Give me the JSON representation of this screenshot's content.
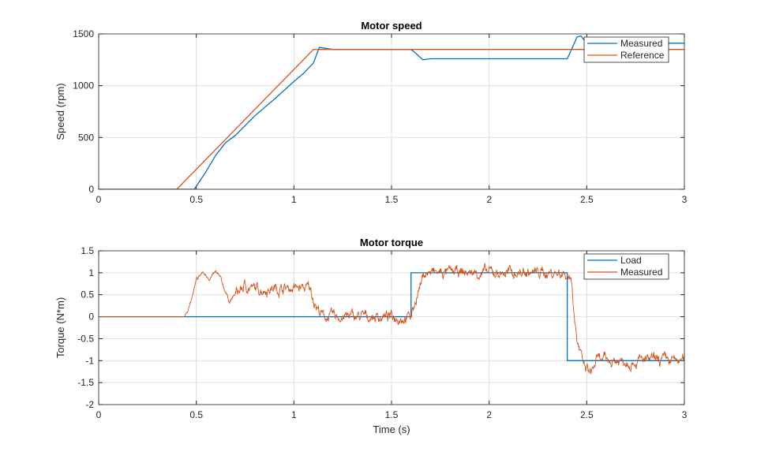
{
  "chart_data": [
    {
      "type": "line",
      "title": "Motor speed",
      "xlabel": "",
      "ylabel": "Speed (rpm)",
      "xlim": [
        0,
        3
      ],
      "ylim": [
        0,
        1500
      ],
      "xticks": [
        0,
        0.5,
        1,
        1.5,
        2,
        2.5,
        3
      ],
      "xtick_labels": [
        "0",
        "0.5",
        "1",
        "1.5",
        "2",
        "2.5",
        "3"
      ],
      "yticks": [
        0,
        500,
        1000,
        1500
      ],
      "ytick_labels": [
        "0",
        "500",
        "1000",
        "1500"
      ],
      "grid": true,
      "legend": "top-right",
      "series": [
        {
          "name": "Measured",
          "color": "#0072BD",
          "noise": 0,
          "x": [
            0,
            0.49,
            0.5,
            0.55,
            0.6,
            0.65,
            0.7,
            0.8,
            0.9,
            1.0,
            1.05,
            1.1,
            1.13,
            1.2,
            1.6,
            1.62,
            1.66,
            1.7,
            2.4,
            2.41,
            2.45,
            2.47,
            2.5,
            3.0
          ],
          "y": [
            0,
            0,
            30,
            170,
            330,
            450,
            520,
            710,
            870,
            1040,
            1120,
            1220,
            1370,
            1350,
            1350,
            1320,
            1250,
            1260,
            1260,
            1300,
            1470,
            1480,
            1410,
            1410
          ]
        },
        {
          "name": "Reference",
          "color": "#D95319",
          "noise": 0,
          "x": [
            0,
            0.4,
            1.1,
            3.0
          ],
          "y": [
            0,
            0,
            1350,
            1350
          ]
        }
      ]
    },
    {
      "type": "line",
      "title": "Motor torque",
      "xlabel": "Time (s)",
      "ylabel": "Torque (N*m)",
      "xlim": [
        0,
        3
      ],
      "ylim": [
        -2,
        1.5
      ],
      "xticks": [
        0,
        0.5,
        1,
        1.5,
        2,
        2.5,
        3
      ],
      "xtick_labels": [
        "0",
        "0.5",
        "1",
        "1.5",
        "2",
        "2.5",
        "3"
      ],
      "yticks": [
        -2,
        -1.5,
        -1,
        -0.5,
        0,
        0.5,
        1,
        1.5
      ],
      "ytick_labels": [
        "-2",
        "-1.5",
        "-1",
        "-0.5",
        "0",
        "0.5",
        "1",
        "1.5"
      ],
      "grid": true,
      "legend": "top-right",
      "series": [
        {
          "name": "Load",
          "color": "#0072BD",
          "noise": 0,
          "x": [
            0,
            1.6,
            1.6,
            2.4,
            2.4,
            3.0
          ],
          "y": [
            0,
            0,
            1,
            1,
            -1,
            -1
          ]
        },
        {
          "name": "Measured",
          "color": "#D95319",
          "noise": 0.14,
          "x": [
            0,
            0.44,
            0.47,
            0.5,
            0.53,
            0.57,
            0.6,
            0.62,
            0.67,
            0.7,
            0.75,
            0.8,
            0.9,
            1.0,
            1.08,
            1.12,
            1.15,
            1.6,
            1.63,
            1.67,
            2.38,
            2.42,
            2.45,
            2.48,
            2.52,
            2.55,
            3.0
          ],
          "y": [
            0,
            0,
            0.3,
            0.8,
            1.0,
            0.88,
            1.0,
            0.9,
            0.35,
            0.5,
            0.7,
            0.62,
            0.65,
            0.65,
            0.65,
            0.2,
            0,
            0,
            0.5,
            1.0,
            1.0,
            0.9,
            -0.5,
            -1.1,
            -1.3,
            -1.0,
            -1.0
          ]
        }
      ]
    }
  ]
}
